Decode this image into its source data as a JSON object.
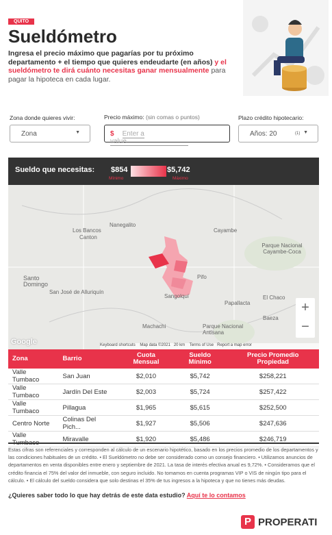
{
  "header": {
    "tag": "QUITO",
    "title": "Sueldómetro",
    "intro_bold": "Ingresa el precio máximo que pagarías por tu próximo departamento + el tiempo que quieres endeudarte (en años)",
    "intro_red": "y el sueldómetro te dirá cuánto necesitas ganar mensualmente",
    "intro_rest": "para pagar la hipoteca en cada lugar."
  },
  "form": {
    "zone_label": "Zona donde quieres vivir:",
    "zone_value": "Zona",
    "price_label": "Precio máximo:",
    "price_hint": "(sin comas o puntos)",
    "price_symbol": "$",
    "price_placeholder": "Enter a value",
    "term_label": "Plazo crédito hipotecario:",
    "term_value": "Años: 20",
    "term_count": "(1)"
  },
  "salary_bar": {
    "label": "Sueldo que necesitas:",
    "min_value": "$854",
    "max_value": "$5,742",
    "min_label": "Mínimo",
    "max_label": "Máximo"
  },
  "map": {
    "places": [
      "Nanegalito",
      "Los Bancos",
      "Canton",
      "Cayambe",
      "Parque Nacional Cayambe-Coca",
      "Santo Domingo",
      "San José de Alluriquín",
      "Pifo",
      "Sangolquí",
      "Papallacta",
      "El Chaco",
      "Machachi",
      "Baeza",
      "Parque Nacional Antisana"
    ],
    "attribution": [
      "Google",
      "Keyboard shortcuts",
      "Map data ©2021",
      "20 km",
      "Terms of Use",
      "Report a map error"
    ],
    "zoom_in": "+",
    "zoom_out": "−"
  },
  "table": {
    "columns": [
      "Zona",
      "Barrio",
      "Cuota Mensual",
      "Sueldo Mínimo",
      "Precio Promedio Propiedad"
    ],
    "rows": [
      [
        "Valle Tumbaco",
        "San Juan",
        "$2,010",
        "$5,742",
        "$258,221"
      ],
      [
        "Valle Tumbaco",
        "Jardín Del Este",
        "$2,003",
        "$5,724",
        "$257,422"
      ],
      [
        "Valle Tumbaco",
        "Pillagua",
        "$1,965",
        "$5,615",
        "$252,500"
      ],
      [
        "Centro Norte",
        "Colinas Del Pich...",
        "$1,927",
        "$5,506",
        "$247,636"
      ],
      [
        "Valle Tumbaco",
        "Miravalle",
        "$1,920",
        "$5,486",
        "$246,719"
      ]
    ]
  },
  "footnote": "Estas cifras son referenciales y corresponden al cálculo de un escenario hipotético, basado en los precios promedio de los departamentos y las condiciones habituales de un crédito. • El Sueldómetro no debe ser considerado como un consejo financiero. • Utilizamos anuncios de departamentos en venta disponibles entre enero y septiembre de 2021. La tasa de interés efectiva anual es 9,72%. • Consideramos que el crédito financia el 75% del valor del inmueble, con seguro incluido. No tomamos en cuenta programas VIP o VIS de ningún tipo para el cálculo. • El cálculo del sueldo considera que solo destinas el 35% de tus ingresos a la hipoteca y que no tienes más deudas.",
  "question": {
    "text": "¿Quieres saber todo lo que hay detrás de este data estudio?",
    "link": "Aquí te lo contamos"
  },
  "brand": "PROPERATI"
}
